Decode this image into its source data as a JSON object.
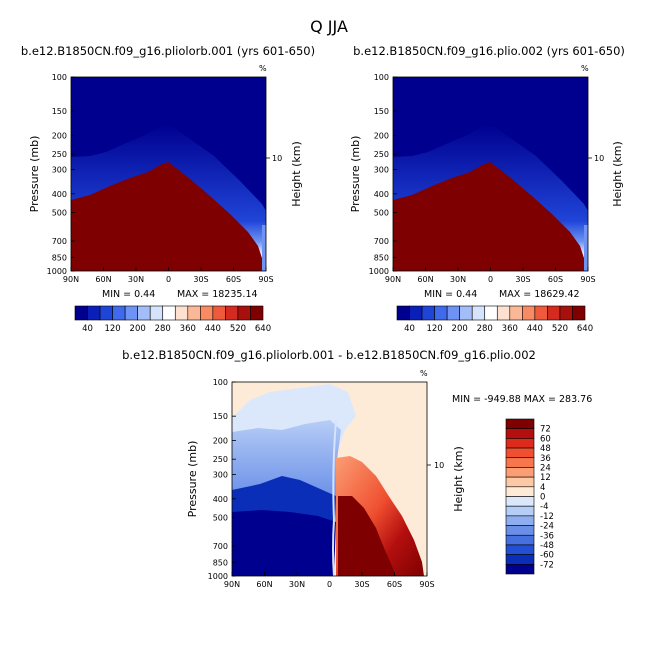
{
  "main_title": "Q  JJA",
  "chart_data": [
    {
      "type": "heatmap",
      "title": "b.e12.B1850CN.f09_g16.pliolorb.001 (yrs 601-650)",
      "units": "%",
      "ylabel": "Pressure (mb)",
      "ylabel_right": "Height (km)",
      "right_ticks": [
        "10"
      ],
      "x_ticks": [
        "90N",
        "60N",
        "30N",
        "0",
        "30S",
        "60S",
        "90S"
      ],
      "y_ticks": [
        "100",
        "150",
        "200",
        "250",
        "300",
        "400",
        "500",
        "700",
        "850",
        "1000"
      ],
      "ylim": [
        1000,
        100
      ],
      "min_text": "MIN =   0.44",
      "max_text": "MAX = 18235.14",
      "colorbar_labels": [
        "40",
        "120",
        "200",
        "280",
        "360",
        "440",
        "520",
        "640"
      ]
    },
    {
      "type": "heatmap",
      "title": "b.e12.B1850CN.f09_g16.plio.002 (yrs 601-650)",
      "units": "%",
      "ylabel": "Pressure (mb)",
      "ylabel_right": "Height (km)",
      "right_ticks": [
        "10"
      ],
      "x_ticks": [
        "90N",
        "60N",
        "30N",
        "0",
        "30S",
        "60S",
        "90S"
      ],
      "y_ticks": [
        "100",
        "150",
        "200",
        "250",
        "300",
        "400",
        "500",
        "700",
        "850",
        "1000"
      ],
      "ylim": [
        1000,
        100
      ],
      "min_text": "MIN =   0.44",
      "max_text": "MAX = 18629.42",
      "colorbar_labels": [
        "40",
        "120",
        "200",
        "280",
        "360",
        "440",
        "520",
        "640"
      ]
    },
    {
      "type": "heatmap",
      "title": "b.e12.B1850CN.f09_g16.pliolorb.001 - b.e12.B1850CN.f09_g16.plio.002",
      "units": "%",
      "ylabel": "Pressure (mb)",
      "ylabel_right": "Height (km)",
      "right_ticks": [
        "10"
      ],
      "x_ticks": [
        "90N",
        "60N",
        "30N",
        "0",
        "30S",
        "60S",
        "90S"
      ],
      "y_ticks": [
        "100",
        "150",
        "200",
        "250",
        "300",
        "400",
        "500",
        "700",
        "850",
        "1000"
      ],
      "ylim": [
        1000,
        100
      ],
      "stats_text": "MIN = -949.88  MAX = 283.76",
      "colorbar_labels": [
        "72",
        "60",
        "48",
        "36",
        "24",
        "12",
        "4",
        "0",
        "-4",
        "-12",
        "-24",
        "-36",
        "-48",
        "-60",
        "-72"
      ]
    }
  ],
  "colors": {
    "abs_palette": [
      "#00008f",
      "#0a1fb8",
      "#1f45d8",
      "#3f6aec",
      "#6e93f4",
      "#a3bdf8",
      "#d6e3fc",
      "#ffffff",
      "#fde0d0",
      "#fbb898",
      "#f88a64",
      "#ef5a3c",
      "#d42a20",
      "#a8100e",
      "#7f0000"
    ],
    "diff_palette": [
      "#7f0000",
      "#b40f0f",
      "#dc2a1c",
      "#f05030",
      "#f8764c",
      "#fb9e74",
      "#fdc8a6",
      "#fdebd8",
      "#dbe8fb",
      "#b6cdf6",
      "#8faef0",
      "#6a8fe8",
      "#4670df",
      "#2250d4",
      "#0a2eb8",
      "#00008f"
    ]
  }
}
